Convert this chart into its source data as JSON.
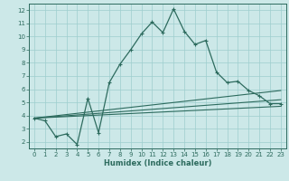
{
  "xlabel": "Humidex (Indice chaleur)",
  "bg_color": "#cce8e8",
  "line_color": "#2d6b5e",
  "grid_color": "#9ecece",
  "xlim": [
    -0.5,
    23.5
  ],
  "ylim": [
    1.5,
    12.5
  ],
  "xticks": [
    0,
    1,
    2,
    3,
    4,
    5,
    6,
    7,
    8,
    9,
    10,
    11,
    12,
    13,
    14,
    15,
    16,
    17,
    18,
    19,
    20,
    21,
    22,
    23
  ],
  "yticks": [
    2,
    3,
    4,
    5,
    6,
    7,
    8,
    9,
    10,
    11,
    12
  ],
  "main_x": [
    0,
    1,
    2,
    3,
    4,
    5,
    6,
    7,
    8,
    9,
    10,
    11,
    12,
    13,
    14,
    15,
    16,
    17,
    18,
    19,
    20,
    21,
    22,
    23
  ],
  "main_y": [
    3.8,
    3.6,
    2.4,
    2.6,
    1.8,
    5.3,
    2.7,
    6.5,
    7.9,
    9.0,
    10.2,
    11.1,
    10.3,
    12.1,
    10.4,
    9.4,
    9.7,
    7.3,
    6.5,
    6.6,
    5.9,
    5.5,
    4.9,
    4.9
  ],
  "line1_x": [
    0,
    23
  ],
  "line1_y": [
    3.8,
    4.7
  ],
  "line2_x": [
    0,
    23
  ],
  "line2_y": [
    3.8,
    5.2
  ],
  "line3_x": [
    0,
    23
  ],
  "line3_y": [
    3.8,
    5.9
  ]
}
